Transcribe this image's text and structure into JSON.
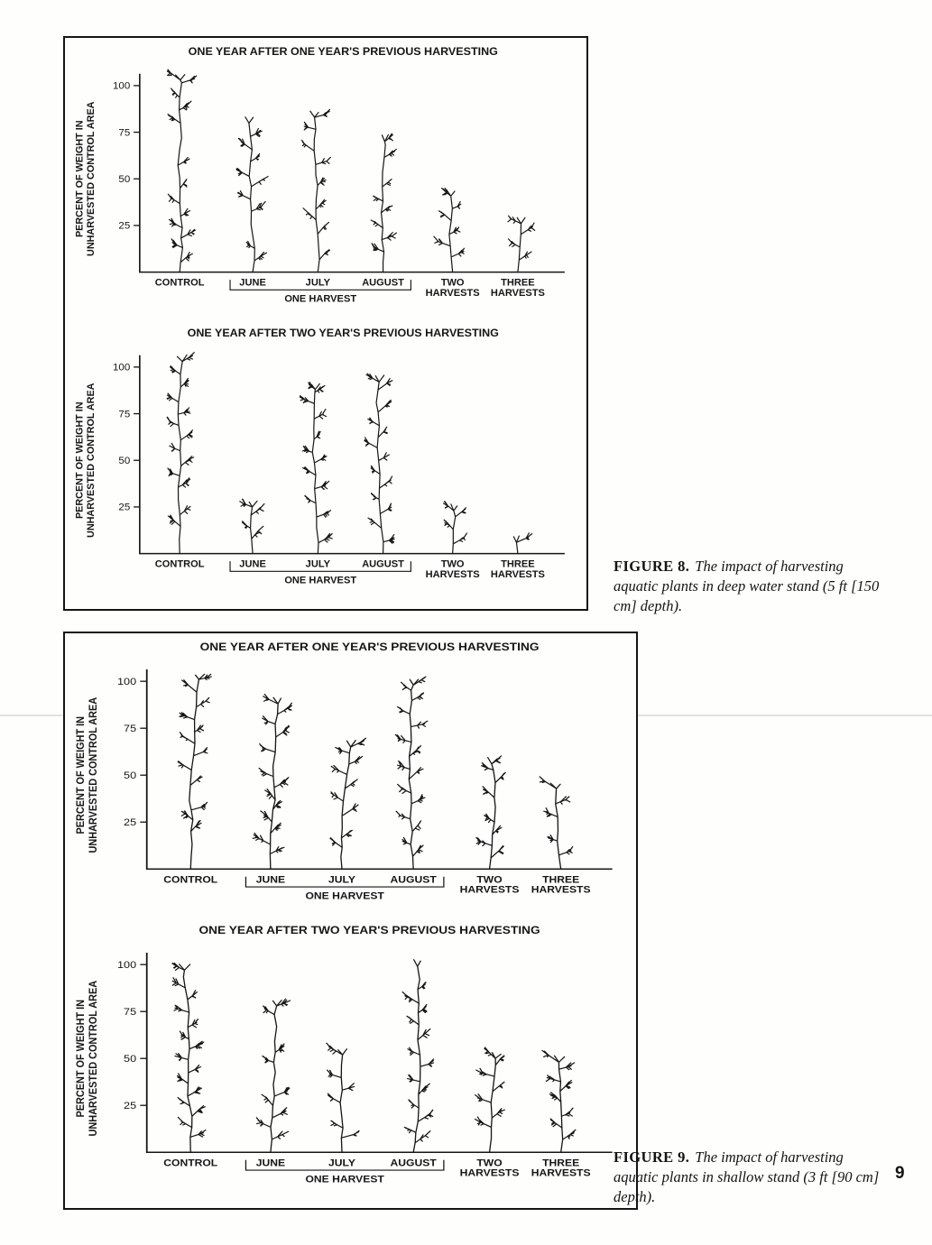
{
  "page": {
    "number": "9"
  },
  "captions": {
    "fig8": {
      "label": "FIGURE 8.",
      "text": "The impact of harvesting aquatic plants in deep water stand (5 ft [150 cm] depth)."
    },
    "fig9": {
      "label": "FIGURE 9.",
      "text": "The impact of harvesting aquatic plants in shallow stand (3 ft [90 cm] depth)."
    }
  },
  "colors": {
    "ink": "#161616",
    "paper": "#fefefc"
  },
  "chart_data": [
    {
      "id": "figure8-top",
      "type": "bar",
      "style": "plant-pictograph",
      "title": "ONE YEAR AFTER ONE YEAR'S PREVIOUS HARVESTING",
      "ylabel_lines": [
        "PERCENT OF WEIGHT IN",
        "UNHARVESTED CONTROL AREA"
      ],
      "ylim": [
        0,
        100
      ],
      "yticks": [
        25,
        50,
        75,
        100
      ],
      "categories": [
        "CONTROL",
        "JUNE",
        "JULY",
        "AUGUST",
        "TWO\nHARVESTS",
        "THREE\nHARVESTS"
      ],
      "values": [
        103,
        80,
        83,
        70,
        41,
        26
      ],
      "group": {
        "label": "ONE HARVEST",
        "from": 1,
        "to": 3
      }
    },
    {
      "id": "figure8-bottom",
      "type": "bar",
      "style": "plant-pictograph",
      "title": "ONE YEAR AFTER TWO YEAR'S PREVIOUS HARVESTING",
      "ylabel_lines": [
        "PERCENT OF WEIGHT IN",
        "UNHARVESTED CONTROL AREA"
      ],
      "ylim": [
        0,
        100
      ],
      "yticks": [
        25,
        50,
        75,
        100
      ],
      "categories": [
        "CONTROL",
        "JUNE",
        "JULY",
        "AUGUST",
        "TWO\nHARVESTS",
        "THREE\nHARVESTS"
      ],
      "values": [
        103,
        25,
        88,
        92,
        23,
        6
      ],
      "group": {
        "label": "ONE HARVEST",
        "from": 1,
        "to": 3
      }
    },
    {
      "id": "figure9-top",
      "type": "bar",
      "style": "plant-pictograph",
      "title": "ONE YEAR AFTER ONE YEAR'S PREVIOUS HARVESTING",
      "ylabel_lines": [
        "PERCENT OF WEIGHT IN",
        "UNHARVESTED CONTROL AREA"
      ],
      "ylim": [
        0,
        100
      ],
      "yticks": [
        25,
        50,
        75,
        100
      ],
      "categories": [
        "CONTROL",
        "JUNE",
        "JULY",
        "AUGUST",
        "TWO\nHARVESTS",
        "THREE\nHARVESTS"
      ],
      "values": [
        101,
        88,
        65,
        98,
        56,
        43
      ],
      "group": {
        "label": "ONE HARVEST",
        "from": 1,
        "to": 3
      }
    },
    {
      "id": "figure9-bottom",
      "type": "bar",
      "style": "plant-pictograph",
      "title": "ONE YEAR AFTER TWO YEAR'S PREVIOUS HARVESTING",
      "ylabel_lines": [
        "PERCENT OF WEIGHT IN",
        "UNHARVESTED CONTROL AREA"
      ],
      "ylim": [
        0,
        100
      ],
      "yticks": [
        25,
        50,
        75,
        100
      ],
      "categories": [
        "CONTROL",
        "JUNE",
        "JULY",
        "AUGUST",
        "TWO\nHARVESTS",
        "THREE\nHARVESTS"
      ],
      "values": [
        97,
        78,
        52,
        99,
        50,
        48
      ],
      "group": {
        "label": "ONE HARVEST",
        "from": 1,
        "to": 3
      }
    }
  ]
}
